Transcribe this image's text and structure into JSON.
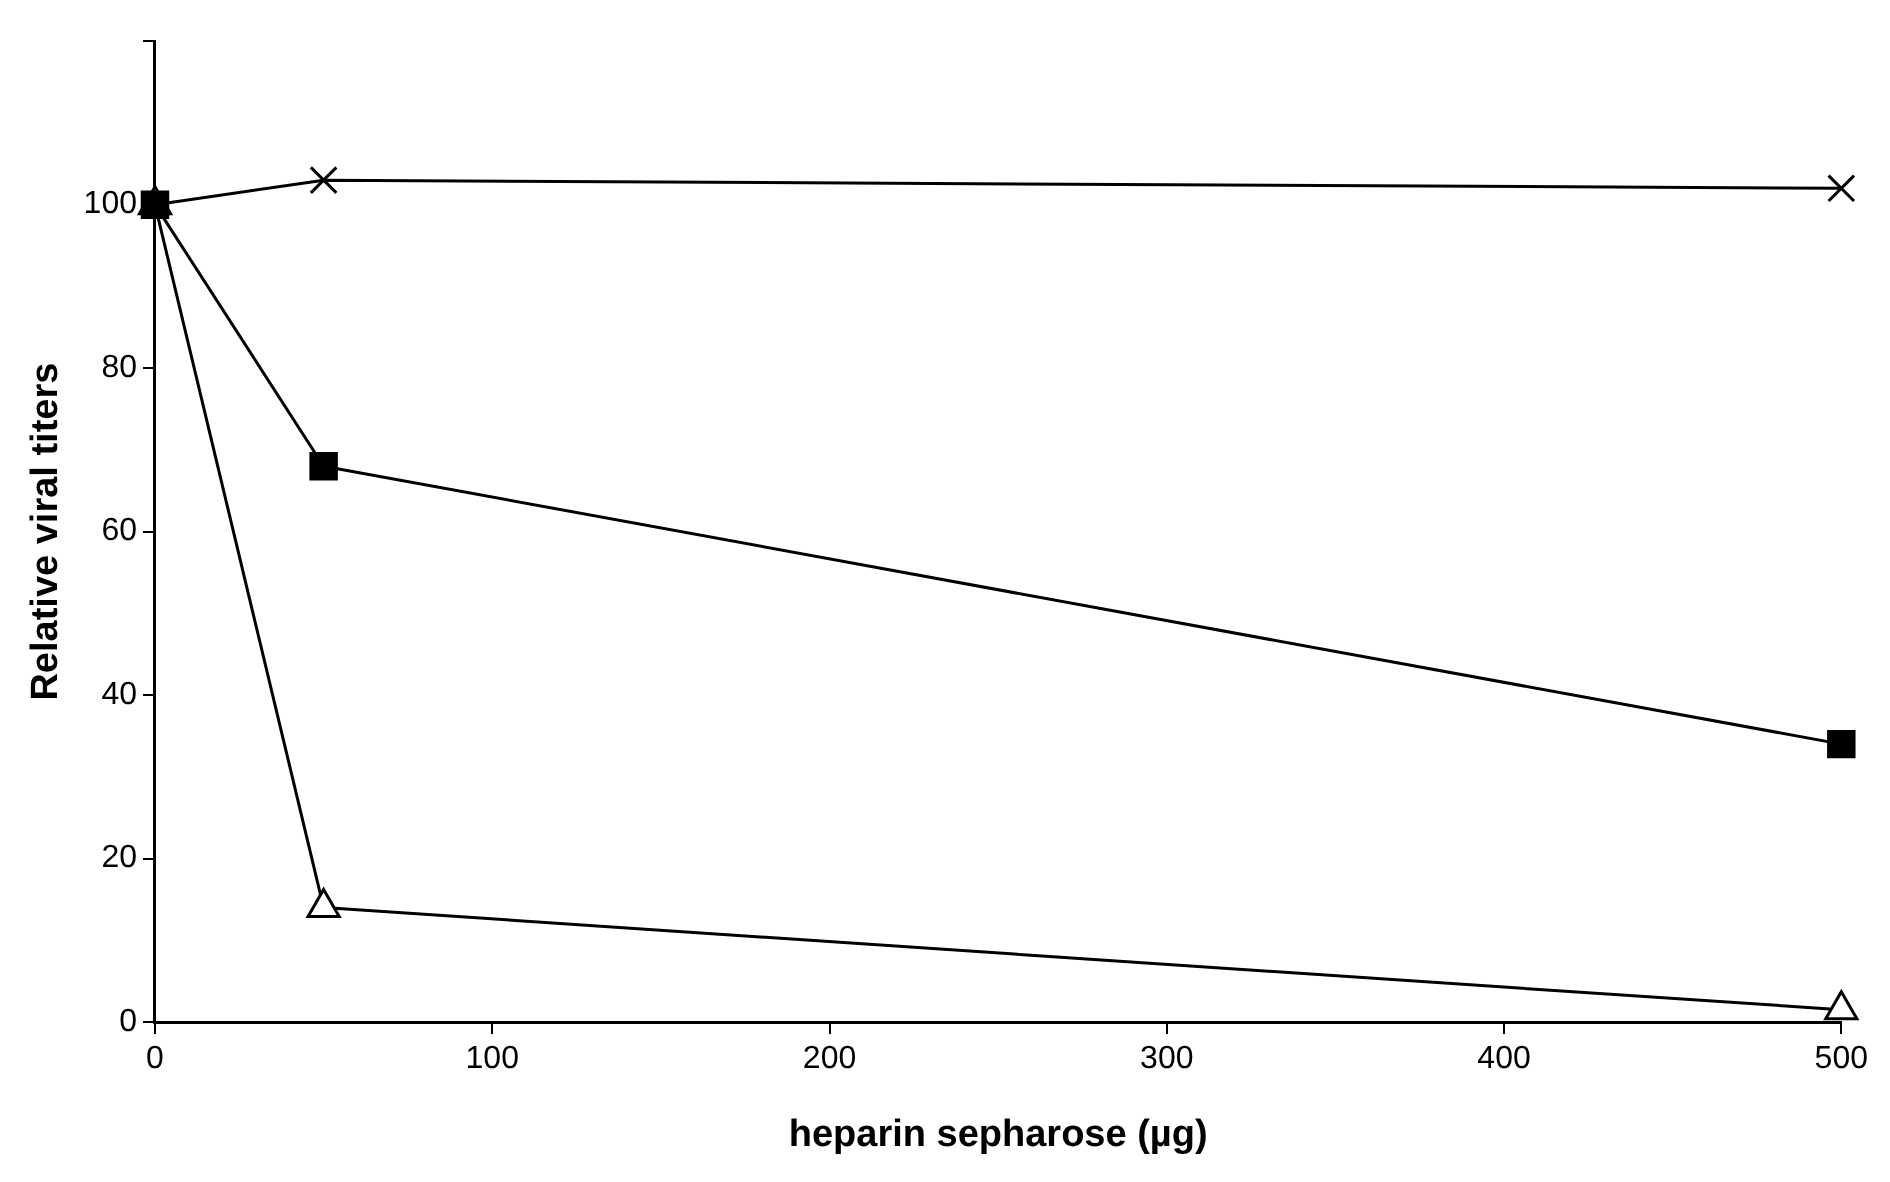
{
  "chart_data": {
    "type": "line",
    "xlabel": "heparin sepharose (µg)",
    "ylabel": "Relative viral titers",
    "xlim": [
      0,
      500
    ],
    "xticks": [
      0,
      100,
      200,
      300,
      400,
      500
    ],
    "ylim": [
      0,
      120
    ],
    "yticks": [
      0,
      20,
      40,
      60,
      80,
      100,
      {
        "value": 120,
        "label": null
      }
    ],
    "grid": false,
    "legend": false,
    "line_style": "solid",
    "series": [
      {
        "color": "#000000",
        "marker": "triangle",
        "x": [
          0,
          50,
          500
        ],
        "values": [
          100,
          14,
          1.5
        ]
      },
      {
        "color": "#000000",
        "marker": "square",
        "x": [
          0,
          50,
          500
        ],
        "values": [
          100,
          68,
          34
        ]
      },
      {
        "color": "#000000",
        "marker": "cross",
        "x": [
          0,
          50,
          500
        ],
        "values": [
          100,
          103,
          102
        ]
      }
    ]
  }
}
